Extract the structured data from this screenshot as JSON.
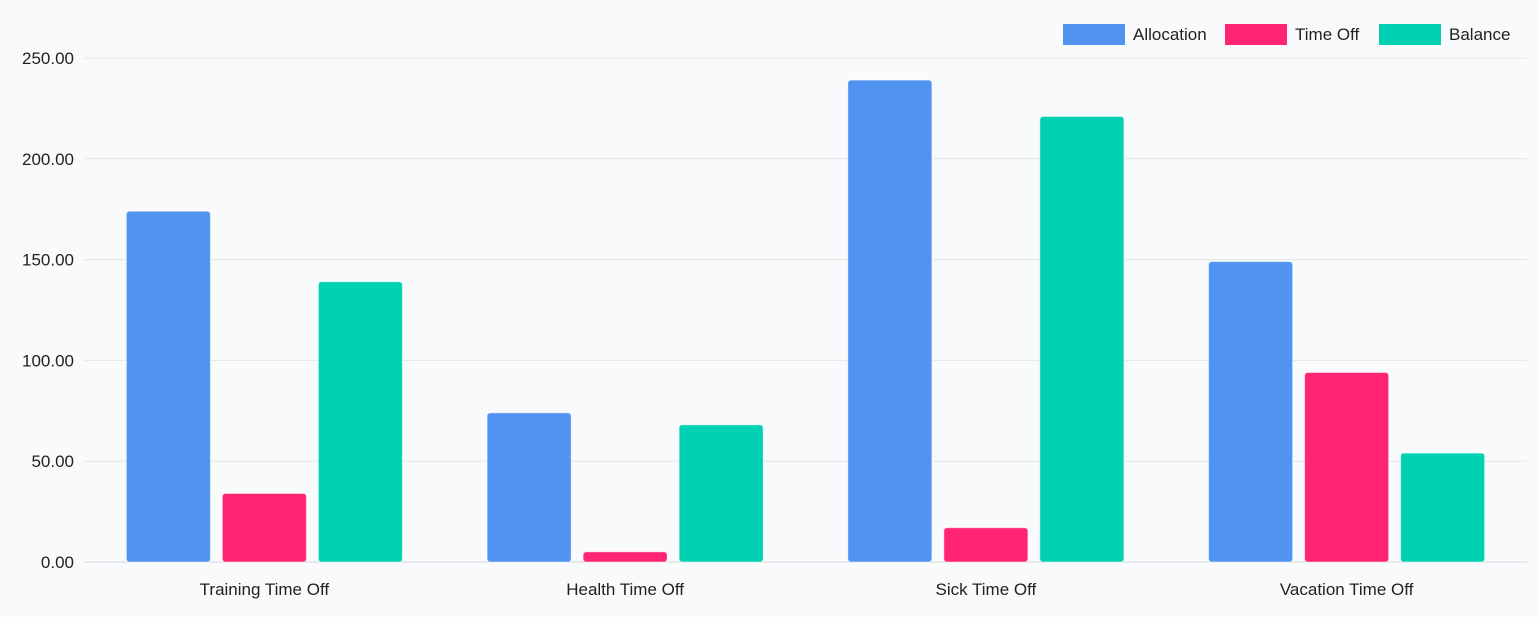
{
  "chart_data": {
    "type": "bar",
    "categories": [
      "Training Time Off",
      "Health Time Off",
      "Sick Time Off",
      "Vacation Time Off"
    ],
    "series": [
      {
        "name": "Allocation",
        "color": "#5193f1",
        "values": [
          174,
          74,
          239,
          149
        ]
      },
      {
        "name": "Time Off",
        "color": "#ff2572",
        "values": [
          34,
          5,
          17,
          94
        ]
      },
      {
        "name": "Balance",
        "color": "#00d1b2",
        "values": [
          139,
          68,
          221,
          54
        ]
      }
    ],
    "y_ticks": [
      "0.00",
      "50.00",
      "100.00",
      "150.00",
      "200.00",
      "250.00"
    ],
    "ylim": [
      0,
      250
    ],
    "grid": true,
    "legend": "top-right"
  }
}
